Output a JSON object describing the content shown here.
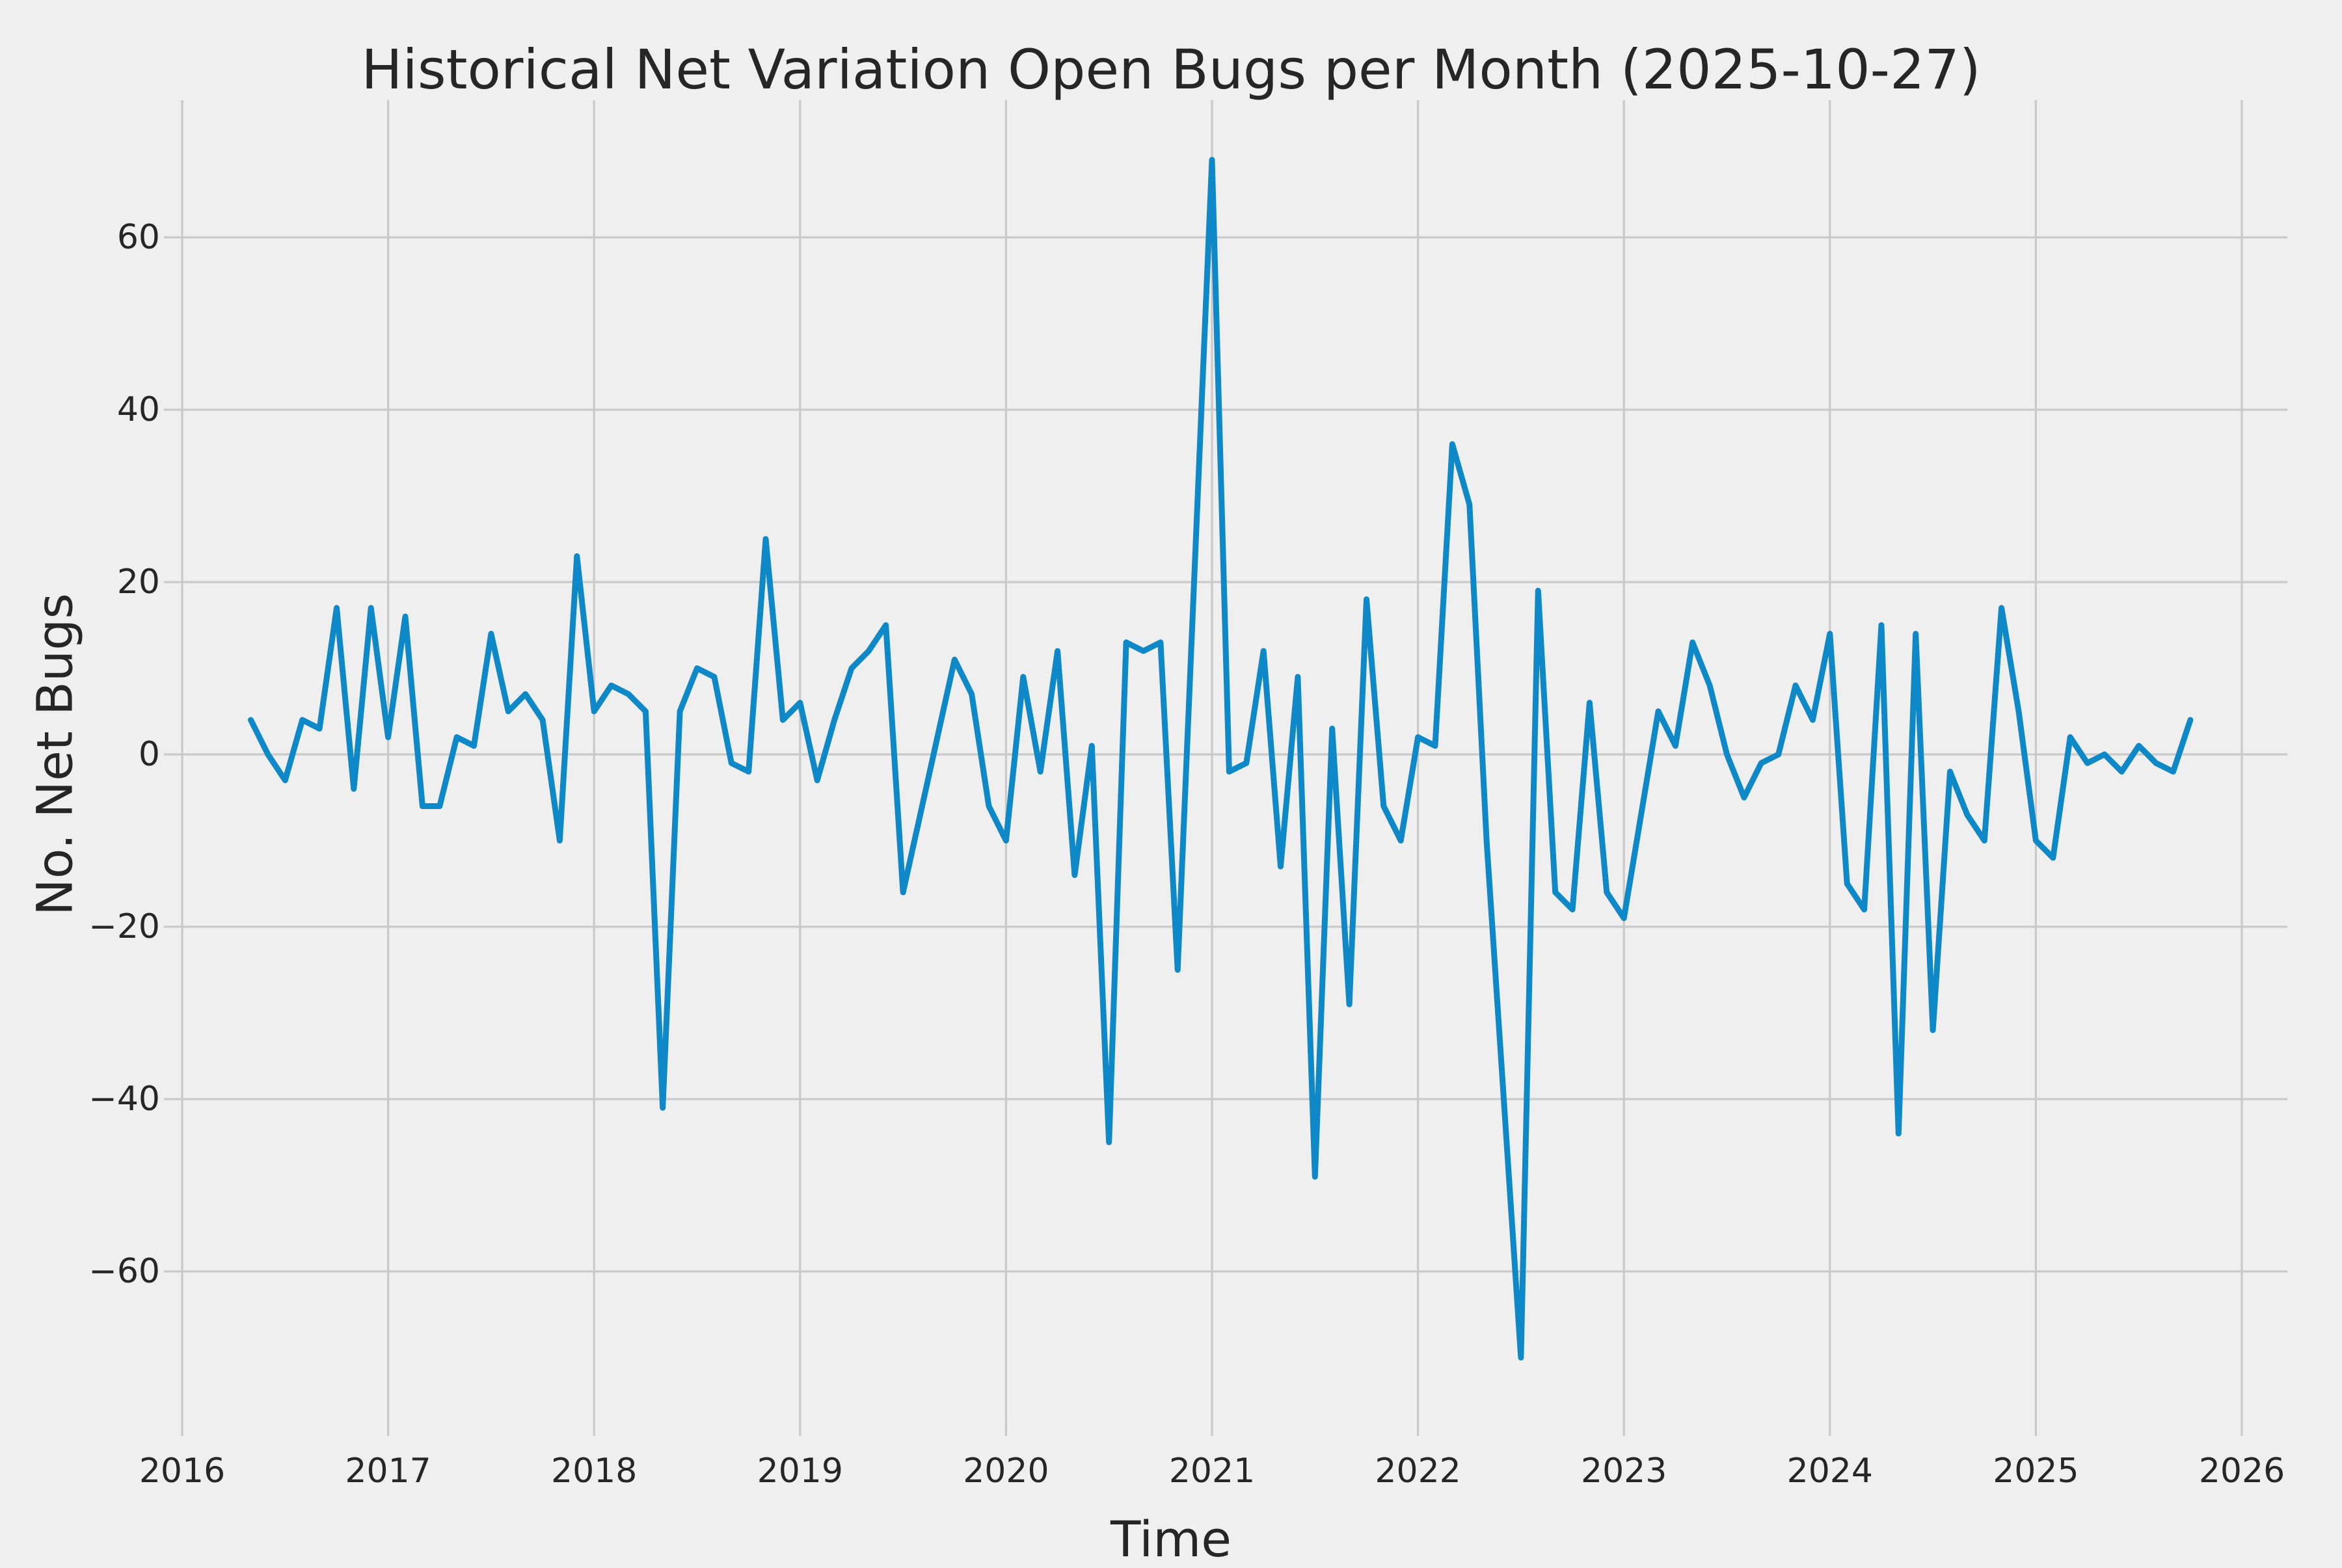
{
  "title": "Historical Net Variation Open Bugs per Month (2025-10-27)",
  "chart_data": {
    "type": "line",
    "title": "Historical Net Variation Open Bugs per Month (2025-10-27)",
    "xlabel": "Time",
    "ylabel": "No. Net Bugs",
    "grid": true,
    "legend": false,
    "background_color": "#efefef",
    "grid_color": "#c9c9c9",
    "line_color": "#0f88c8",
    "text_color": "#262626",
    "x_ticks": [
      {
        "label": "2016",
        "year": 2016
      },
      {
        "label": "2017",
        "year": 2017
      },
      {
        "label": "2018",
        "year": 2018
      },
      {
        "label": "2019",
        "year": 2019
      },
      {
        "label": "2020",
        "year": 2020
      },
      {
        "label": "2021",
        "year": 2021
      },
      {
        "label": "2022",
        "year": 2022
      },
      {
        "label": "2023",
        "year": 2023
      },
      {
        "label": "2024",
        "year": 2024
      },
      {
        "label": "2025",
        "year": 2025
      },
      {
        "label": "2026",
        "year": 2026
      }
    ],
    "y_ticks": [
      {
        "label": "60",
        "value": 60
      },
      {
        "label": "40",
        "value": 40
      },
      {
        "label": "20",
        "value": 20
      },
      {
        "label": "0",
        "value": 0
      },
      {
        "label": "−20",
        "value": -20
      },
      {
        "label": "−40",
        "value": -40
      },
      {
        "label": "−60",
        "value": -60
      }
    ],
    "xlim_years": [
      2015.85,
      2026.25
    ],
    "ylim": [
      -77,
      76
    ],
    "series": [
      {
        "name": "net-open-bugs-per-month",
        "start_year": 2016,
        "start_month": 5,
        "frequency": "monthly",
        "values": [
          4,
          0,
          -3,
          4,
          3,
          17,
          -4,
          17,
          2,
          16,
          -6,
          -6,
          2,
          1,
          14,
          5,
          7,
          4,
          -10,
          23,
          5,
          8,
          7,
          5,
          -41,
          5,
          10,
          9,
          -1,
          -2,
          25,
          4,
          6,
          -3,
          4,
          10,
          12,
          15,
          -16,
          -7,
          2,
          11,
          7,
          -6,
          -10,
          9,
          -2,
          12,
          -14,
          1,
          -45,
          13,
          12,
          13,
          -25,
          22,
          69,
          -2,
          -1,
          12,
          -13,
          9,
          -49,
          3,
          -29,
          18,
          -6,
          -10,
          2,
          1,
          36,
          29,
          -10,
          -40,
          -70,
          19,
          -16,
          -18,
          6,
          -16,
          -19,
          -7,
          5,
          1,
          13,
          8,
          0,
          -5,
          -1,
          0,
          8,
          4,
          14,
          -15,
          -18,
          15,
          -44,
          14,
          -32,
          -2,
          -7,
          -10,
          17,
          5,
          -10,
          -12,
          2,
          -1,
          0,
          -2,
          1,
          -1,
          -2,
          4
        ]
      }
    ]
  }
}
